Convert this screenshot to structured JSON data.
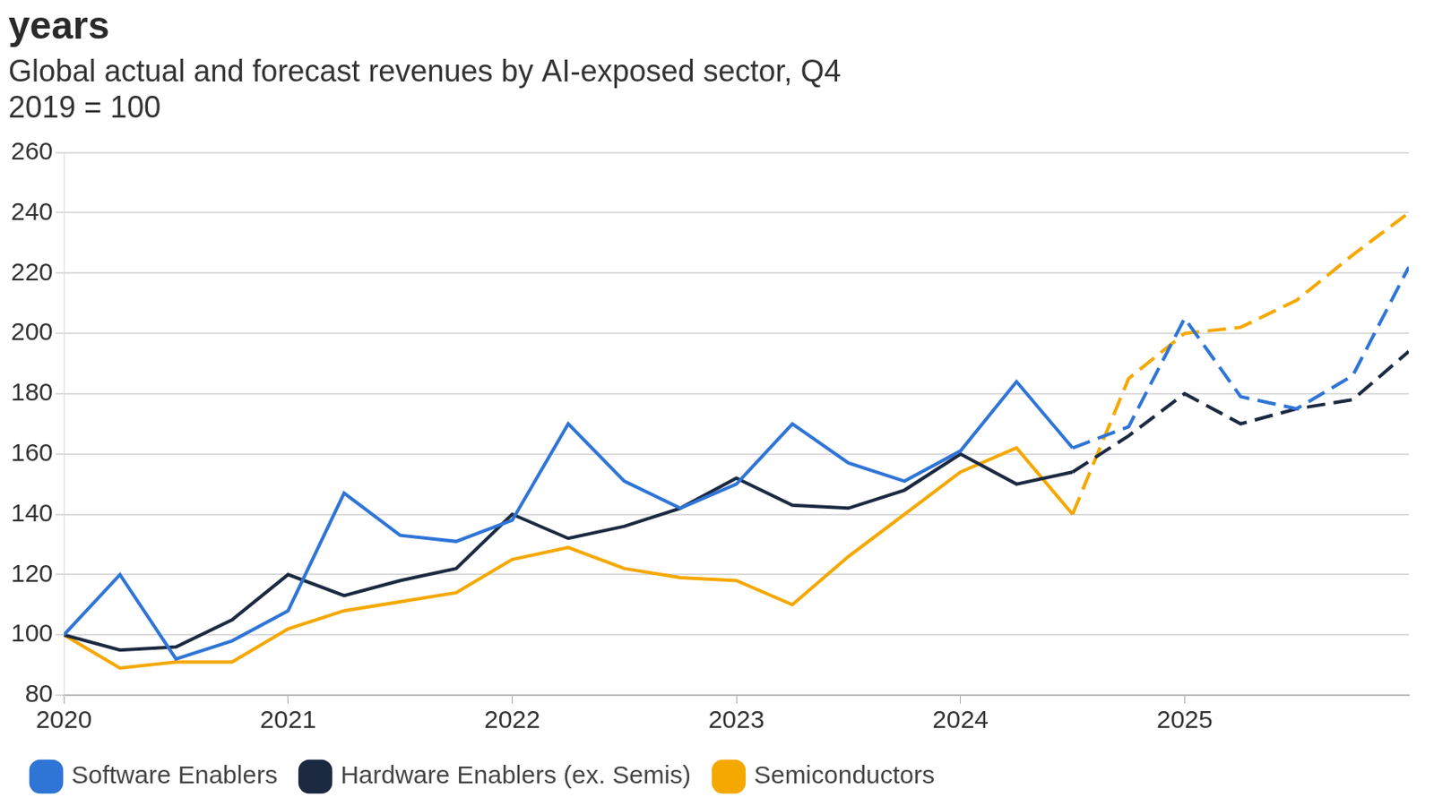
{
  "chart_data": {
    "type": "line",
    "title": "years",
    "subtitle": [
      "Global actual and forecast revenues by AI-exposed sector, Q4",
      "2019 = 100"
    ],
    "x": [
      2020,
      2020.25,
      2020.5,
      2020.75,
      2021,
      2021.25,
      2021.5,
      2021.75,
      2022,
      2022.25,
      2022.5,
      2022.75,
      2023,
      2023.25,
      2023.5,
      2023.75,
      2024,
      2024.25,
      2024.5,
      2024.75,
      2025,
      2025.25,
      2025.5,
      2025.75,
      2026
    ],
    "forecast_from": 2024.5,
    "series": [
      {
        "name": "Software Enablers",
        "color": "#2f75d6",
        "values": [
          100,
          120,
          92,
          98,
          108,
          147,
          133,
          131,
          138,
          170,
          151,
          142,
          150,
          170,
          157,
          151,
          161,
          184,
          162,
          169,
          205,
          179,
          175,
          186,
          222
        ]
      },
      {
        "name": "Hardware Enablers (ex. Semis)",
        "color": "#1b2a41",
        "values": [
          100,
          95,
          96,
          105,
          120,
          113,
          118,
          122,
          140,
          132,
          136,
          142,
          152,
          143,
          142,
          148,
          160,
          150,
          154,
          166,
          180,
          170,
          175,
          178,
          194
        ]
      },
      {
        "name": "Semiconductors",
        "color": "#f5a800",
        "values": [
          100,
          89,
          91,
          91,
          102,
          108,
          111,
          114,
          125,
          129,
          122,
          119,
          118,
          110,
          126,
          140,
          154,
          162,
          140,
          185,
          200,
          202,
          211,
          226,
          240
        ]
      }
    ],
    "xlim": [
      2020,
      2026
    ],
    "xticks": [
      2020,
      2021,
      2022,
      2023,
      2024,
      2025
    ],
    "ylim": [
      80,
      260
    ],
    "yticks": [
      80,
      100,
      120,
      140,
      160,
      180,
      200,
      220,
      240,
      260
    ],
    "grid": true,
    "legend": "bottom-left"
  }
}
